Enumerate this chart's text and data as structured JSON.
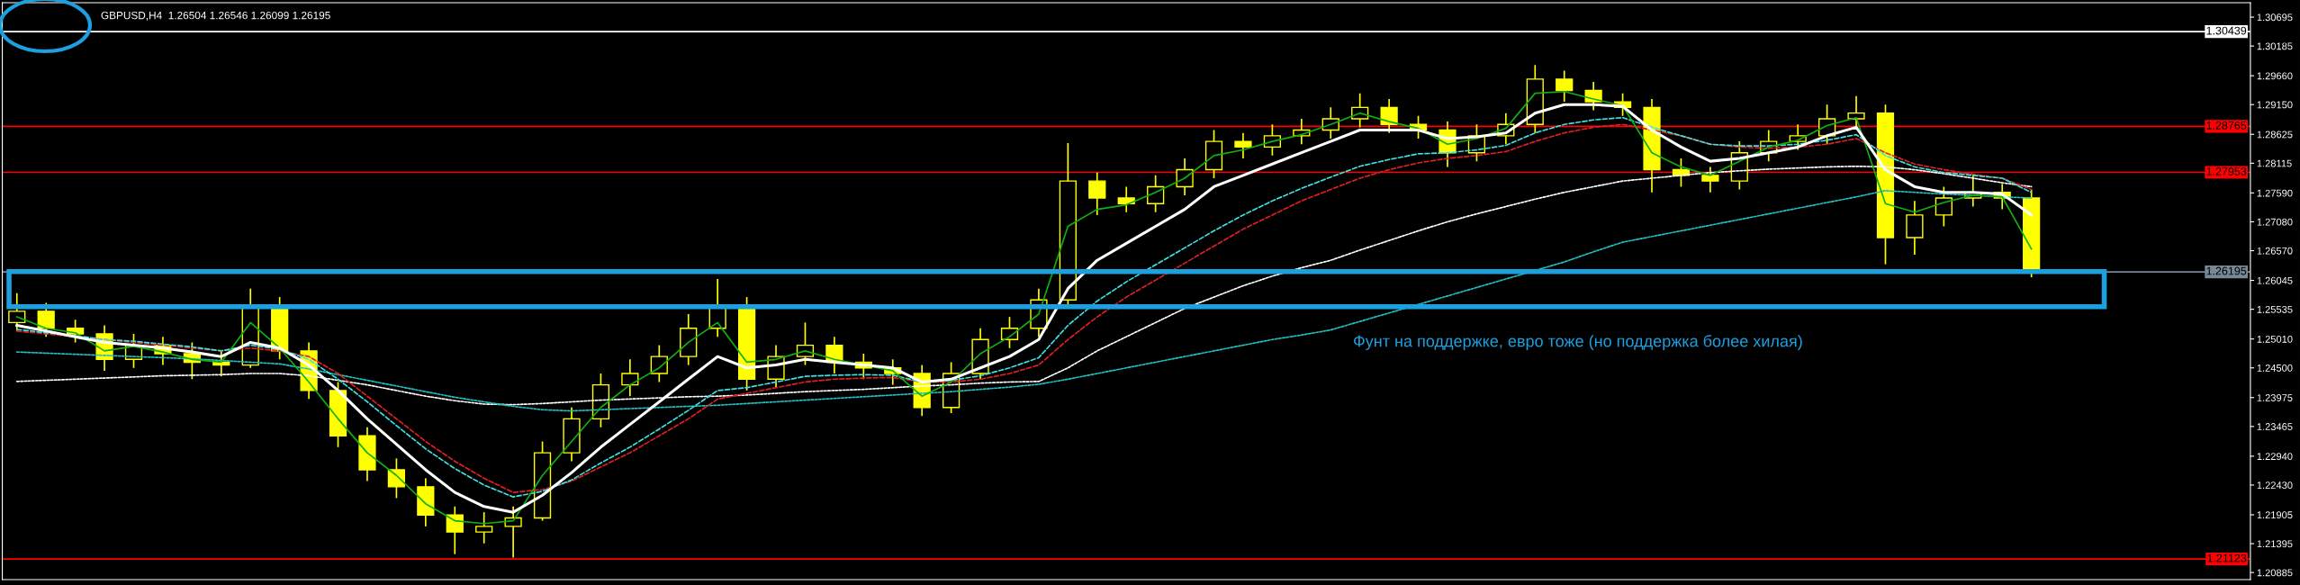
{
  "chart_data": {
    "type": "candlestick",
    "title": "GBPUSD,H4  1.26504 1.26546 1.26099 1.26195",
    "annotations": [
      "Фунт на поддержке, евро тоже (но поддержка более хилая)"
    ],
    "categories": [
      null,
      null,
      null,
      null,
      null,
      null,
      null,
      null,
      null,
      null,
      null,
      null,
      null,
      null,
      null,
      null,
      null,
      null,
      null,
      null,
      null,
      null,
      null,
      null,
      null,
      null,
      null,
      null,
      null,
      null,
      null,
      null,
      null,
      null,
      null,
      null,
      null,
      null,
      null,
      null,
      null,
      null,
      null,
      null,
      null,
      null,
      null,
      null,
      null,
      null,
      null,
      null,
      null,
      null,
      null,
      null,
      null,
      null,
      null,
      null,
      null,
      null,
      null,
      null,
      null,
      null,
      null,
      null,
      null,
      null,
      null,
      null,
      null,
      null,
      null,
      null,
      null
    ],
    "color": "#ffff00",
    "ohlc": [
      [
        1.253,
        1.2582,
        1.2515,
        1.255
      ],
      [
        1.255,
        1.2565,
        1.2505,
        1.252
      ],
      [
        1.252,
        1.2535,
        1.2495,
        1.251
      ],
      [
        1.251,
        1.2525,
        1.2445,
        1.2465
      ],
      [
        1.2465,
        1.251,
        1.245,
        1.249
      ],
      [
        1.249,
        1.2505,
        1.2455,
        1.2475
      ],
      [
        1.2475,
        1.2495,
        1.243,
        1.246
      ],
      [
        1.246,
        1.248,
        1.2435,
        1.2455
      ],
      [
        1.2455,
        1.259,
        1.245,
        1.256
      ],
      [
        1.256,
        1.2575,
        1.2465,
        1.248
      ],
      [
        1.248,
        1.2495,
        1.2395,
        1.241
      ],
      [
        1.241,
        1.2425,
        1.231,
        1.233
      ],
      [
        1.233,
        1.2345,
        1.225,
        1.227
      ],
      [
        1.227,
        1.229,
        1.222,
        1.224
      ],
      [
        1.224,
        1.2255,
        1.217,
        1.219
      ],
      [
        1.219,
        1.2205,
        1.2121,
        1.216
      ],
      [
        1.216,
        1.2195,
        1.214,
        1.217
      ],
      [
        1.217,
        1.2205,
        1.2115,
        1.2185
      ],
      [
        1.2185,
        1.232,
        1.218,
        1.23
      ],
      [
        1.23,
        1.238,
        1.2285,
        1.236
      ],
      [
        1.236,
        1.244,
        1.2345,
        1.242
      ],
      [
        1.242,
        1.2465,
        1.24,
        1.244
      ],
      [
        1.244,
        1.249,
        1.2425,
        1.247
      ],
      [
        1.247,
        1.2545,
        1.2455,
        1.252
      ],
      [
        1.252,
        1.2607,
        1.2505,
        1.256
      ],
      [
        1.256,
        1.2575,
        1.241,
        1.243
      ],
      [
        1.243,
        1.249,
        1.2415,
        1.247
      ],
      [
        1.247,
        1.253,
        1.2455,
        1.249
      ],
      [
        1.249,
        1.2505,
        1.244,
        1.246
      ],
      [
        1.246,
        1.2475,
        1.243,
        1.245
      ],
      [
        1.245,
        1.2465,
        1.242,
        1.244
      ],
      [
        1.244,
        1.2455,
        1.2365,
        1.238
      ],
      [
        1.238,
        1.246,
        1.237,
        1.244
      ],
      [
        1.244,
        1.252,
        1.243,
        1.25
      ],
      [
        1.25,
        1.254,
        1.2485,
        1.252
      ],
      [
        1.252,
        1.259,
        1.2505,
        1.257
      ],
      [
        1.257,
        1.2847,
        1.256,
        1.278
      ],
      [
        1.278,
        1.2795,
        1.272,
        1.275
      ],
      [
        1.275,
        1.277,
        1.2725,
        1.274
      ],
      [
        1.274,
        1.279,
        1.2725,
        1.277
      ],
      [
        1.277,
        1.282,
        1.2755,
        1.28
      ],
      [
        1.28,
        1.287,
        1.2785,
        1.285
      ],
      [
        1.285,
        1.2865,
        1.282,
        1.284
      ],
      [
        1.284,
        1.288,
        1.2825,
        1.286
      ],
      [
        1.286,
        1.289,
        1.2845,
        1.287
      ],
      [
        1.287,
        1.291,
        1.2855,
        1.289
      ],
      [
        1.289,
        1.2935,
        1.2875,
        1.291
      ],
      [
        1.291,
        1.2925,
        1.2865,
        1.288
      ],
      [
        1.288,
        1.2895,
        1.2855,
        1.287
      ],
      [
        1.287,
        1.2885,
        1.2805,
        1.283
      ],
      [
        1.283,
        1.288,
        1.2815,
        1.286
      ],
      [
        1.286,
        1.29,
        1.2845,
        1.288
      ],
      [
        1.288,
        1.2985,
        1.2865,
        1.296
      ],
      [
        1.296,
        1.2975,
        1.292,
        1.294
      ],
      [
        1.294,
        1.2955,
        1.2905,
        1.292
      ],
      [
        1.292,
        1.2935,
        1.2895,
        1.291
      ],
      [
        1.291,
        1.2925,
        1.276,
        1.28
      ],
      [
        1.28,
        1.282,
        1.277,
        1.279
      ],
      [
        1.279,
        1.2805,
        1.276,
        1.278
      ],
      [
        1.278,
        1.285,
        1.2765,
        1.283
      ],
      [
        1.283,
        1.287,
        1.2815,
        1.285
      ],
      [
        1.285,
        1.288,
        1.2835,
        1.286
      ],
      [
        1.286,
        1.2915,
        1.2845,
        1.289
      ],
      [
        1.289,
        1.293,
        1.2875,
        1.29
      ],
      [
        1.29,
        1.2915,
        1.2633,
        1.268
      ],
      [
        1.268,
        1.2745,
        1.265,
        1.272
      ],
      [
        1.272,
        1.277,
        1.27,
        1.275
      ],
      [
        1.275,
        1.279,
        1.2735,
        1.276
      ],
      [
        1.276,
        1.2775,
        1.273,
        1.275
      ],
      [
        1.275,
        1.2765,
        1.26099,
        1.26195
      ],
      null,
      null,
      null,
      null,
      null,
      null,
      null
    ],
    "series": [
      {
        "type": "line",
        "color": "#ffffff",
        "line_style": "dotted",
        "values": [
          1.2426,
          1.2428,
          1.243,
          1.2432,
          1.2434,
          1.2436,
          1.2437,
          1.2438,
          1.244,
          1.244,
          1.2436,
          1.2428,
          1.242,
          1.241,
          1.24,
          1.2392,
          1.2386,
          1.2385,
          1.2387,
          1.239,
          1.2393,
          1.2395,
          1.2397,
          1.2399,
          1.24,
          1.2402,
          1.2405,
          1.2408,
          1.241,
          1.2412,
          1.2415,
          1.2418,
          1.242,
          1.2423,
          1.2425,
          1.2426,
          1.245,
          1.248,
          1.2505,
          1.253,
          1.2555,
          1.2575,
          1.2595,
          1.2612,
          1.2627,
          1.264,
          1.2658,
          1.2675,
          1.2692,
          1.2708,
          1.2722,
          1.2735,
          1.2748,
          1.276,
          1.277,
          1.278,
          1.2785,
          1.279,
          1.2795,
          1.2798,
          1.2801,
          1.2803,
          1.2805,
          1.2806,
          1.2805,
          1.28,
          1.2793,
          1.2785,
          1.2777,
          1.277,
          null,
          null,
          null,
          null,
          null,
          null,
          null
        ]
      },
      {
        "type": "line",
        "color": "#20c0c0",
        "line_style": "dotted",
        "values": [
          1.2478,
          1.2476,
          1.2474,
          1.2472,
          1.247,
          1.2468,
          1.2466,
          1.2463,
          1.246,
          1.2457,
          1.2448,
          1.2438,
          1.2428,
          1.2418,
          1.2408,
          1.2398,
          1.239,
          1.2382,
          1.2376,
          1.2374,
          1.2376,
          1.2378,
          1.238,
          1.2382,
          1.2384,
          1.2387,
          1.239,
          1.2393,
          1.2396,
          1.2399,
          1.2402,
          1.2405,
          1.2408,
          1.2412,
          1.2416,
          1.2421,
          1.243,
          1.244,
          1.245,
          1.246,
          1.247,
          1.248,
          1.249,
          1.25,
          1.2508,
          1.2517,
          1.2532,
          1.2547,
          1.2562,
          1.2577,
          1.2592,
          1.2607,
          1.2622,
          1.2637,
          1.2655,
          1.2672,
          1.2682,
          1.2692,
          1.2702,
          1.2712,
          1.2722,
          1.2732,
          1.2742,
          1.2752,
          1.2763,
          1.276,
          1.2757,
          1.2755,
          1.2752,
          1.275,
          null,
          null,
          null,
          null,
          null,
          null,
          null
        ]
      },
      {
        "type": "line",
        "color": "#e02020",
        "line_style": "dashed",
        "values": [
          1.2515,
          1.251,
          1.2505,
          1.25,
          1.2495,
          1.249,
          1.2485,
          1.248,
          1.2485,
          1.248,
          1.247,
          1.244,
          1.24,
          1.236,
          1.232,
          1.2285,
          1.2255,
          1.223,
          1.2235,
          1.225,
          1.2275,
          1.23,
          1.233,
          1.236,
          1.2395,
          1.2405,
          1.2415,
          1.2425,
          1.243,
          1.2432,
          1.2433,
          1.2425,
          1.2425,
          1.243,
          1.244,
          1.2455,
          1.25,
          1.254,
          1.2575,
          1.2605,
          1.2635,
          1.2665,
          1.2695,
          1.272,
          1.2745,
          1.2765,
          1.2785,
          1.28,
          1.2812,
          1.282,
          1.2825,
          1.2832,
          1.285,
          1.2865,
          1.2875,
          1.288,
          1.287,
          1.286,
          1.2845,
          1.284,
          1.2838,
          1.284,
          1.2845,
          1.2855,
          1.283,
          1.281,
          1.28,
          1.2792,
          1.2785,
          1.2765,
          null,
          null,
          null,
          null,
          null,
          null,
          null
        ]
      },
      {
        "type": "line",
        "color": "#40e0e0",
        "line_style": "dashed",
        "values": [
          1.2518,
          1.2512,
          1.2507,
          1.25,
          1.2497,
          1.2492,
          1.2487,
          1.248,
          1.249,
          1.2483,
          1.2465,
          1.243,
          1.239,
          1.2348,
          1.2307,
          1.2272,
          1.2243,
          1.2222,
          1.2232,
          1.2252,
          1.2282,
          1.231,
          1.2342,
          1.2375,
          1.241,
          1.2415,
          1.2425,
          1.2435,
          1.2437,
          1.2438,
          1.2437,
          1.2425,
          1.2428,
          1.2436,
          1.245,
          1.2468,
          1.2525,
          1.2568,
          1.2602,
          1.2632,
          1.2662,
          1.2692,
          1.272,
          1.2745,
          1.2767,
          1.2787,
          1.2806,
          1.2818,
          1.2828,
          1.283,
          1.2835,
          1.2843,
          1.2865,
          1.288,
          1.2888,
          1.2892,
          1.2875,
          1.286,
          1.2845,
          1.2842,
          1.2842,
          1.2845,
          1.2852,
          1.2862,
          1.2825,
          1.2805,
          1.2795,
          1.279,
          1.2785,
          1.276,
          null,
          null,
          null,
          null,
          null,
          null,
          null
        ]
      },
      {
        "type": "line",
        "color": "#10b010",
        "line_style": "solid",
        "values": [
          1.254,
          1.252,
          1.2512,
          1.248,
          1.2488,
          1.2478,
          1.2465,
          1.246,
          1.253,
          1.2485,
          1.2425,
          1.236,
          1.23,
          1.226,
          1.221,
          1.218,
          1.2175,
          1.218,
          1.226,
          1.232,
          1.238,
          1.242,
          1.245,
          1.2495,
          1.253,
          1.246,
          1.2465,
          1.248,
          1.2465,
          1.2455,
          1.2445,
          1.24,
          1.2425,
          1.2475,
          1.2505,
          1.2545,
          1.27,
          1.273,
          1.2738,
          1.276,
          1.2785,
          1.2825,
          1.2835,
          1.285,
          1.2862,
          1.288,
          1.29,
          1.2885,
          1.2873,
          1.2845,
          1.2855,
          1.2873,
          1.2935,
          1.2938,
          1.2925,
          1.2913,
          1.283,
          1.2805,
          1.279,
          1.2815,
          1.284,
          1.2852,
          1.2878,
          1.2892,
          1.274,
          1.2725,
          1.2742,
          1.2755,
          1.2752,
          1.266,
          null,
          null,
          null,
          null,
          null,
          null,
          null
        ]
      },
      {
        "type": "line",
        "color": "#ffffff",
        "line_style": "solid",
        "values": [
          1.2525,
          1.2515,
          1.2505,
          1.2495,
          1.249,
          1.2485,
          1.2478,
          1.247,
          1.2495,
          1.2485,
          1.2455,
          1.241,
          1.236,
          1.2315,
          1.227,
          1.223,
          1.2205,
          1.2195,
          1.2225,
          1.2265,
          1.231,
          1.235,
          1.239,
          1.243,
          1.247,
          1.245,
          1.2455,
          1.2465,
          1.246,
          1.2455,
          1.245,
          1.2425,
          1.243,
          1.245,
          1.247,
          1.25,
          1.259,
          1.264,
          1.267,
          1.27,
          1.273,
          1.277,
          1.279,
          1.281,
          1.283,
          1.285,
          1.287,
          1.287,
          1.287,
          1.2855,
          1.2858,
          1.2865,
          1.29,
          1.2915,
          1.2915,
          1.2912,
          1.287,
          1.284,
          1.2815,
          1.282,
          1.283,
          1.284,
          1.286,
          1.2875,
          1.28,
          1.277,
          1.276,
          1.276,
          1.2757,
          1.272,
          null,
          null,
          null,
          null,
          null,
          null,
          null
        ]
      }
    ],
    "ylim": [
      1.2076,
      1.3095
    ],
    "yticks": [
      {
        "value": 1.30695,
        "label": "1.30695"
      },
      {
        "value": 1.30185,
        "label": "1.30185"
      },
      {
        "value": 1.2966,
        "label": "1.29660"
      },
      {
        "value": 1.2915,
        "label": "1.29150"
      },
      {
        "value": 1.28625,
        "label": "1.28625"
      },
      {
        "value": 1.28115,
        "label": "1.28115"
      },
      {
        "value": 1.2759,
        "label": "1.27590"
      },
      {
        "value": 1.2708,
        "label": "1.27080"
      },
      {
        "value": 1.2657,
        "label": "1.26570"
      },
      {
        "value": 1.26045,
        "label": "1.26045"
      },
      {
        "value": 1.25535,
        "label": "1.25535"
      },
      {
        "value": 1.2501,
        "label": "1.25010"
      },
      {
        "value": 1.245,
        "label": "1.24500"
      },
      {
        "value": 1.23975,
        "label": "1.23975"
      },
      {
        "value": 1.23465,
        "label": "1.23465"
      },
      {
        "value": 1.2294,
        "label": "1.22940"
      },
      {
        "value": 1.2243,
        "label": "1.22430"
      },
      {
        "value": 1.21905,
        "label": "1.21905"
      },
      {
        "value": 1.21395,
        "label": "1.21395"
      },
      {
        "value": 1.20885,
        "label": "1.20885"
      }
    ],
    "ref_lines": [
      {
        "axis": "y",
        "value": 1.30439,
        "label": "1.30439",
        "color": "#ffffff"
      },
      {
        "axis": "y",
        "value": 1.28765,
        "label": "1.28765",
        "color": "#ff0000"
      },
      {
        "axis": "y",
        "value": 1.27953,
        "label": "1.27953",
        "color": "#ff0000"
      },
      {
        "axis": "y",
        "value": 1.26195,
        "label": "1.26195",
        "color": "#778899"
      },
      {
        "axis": "y",
        "value": 1.21123,
        "label": "1.21123",
        "color": "#ff0000"
      }
    ],
    "grid": false,
    "legend": false
  }
}
